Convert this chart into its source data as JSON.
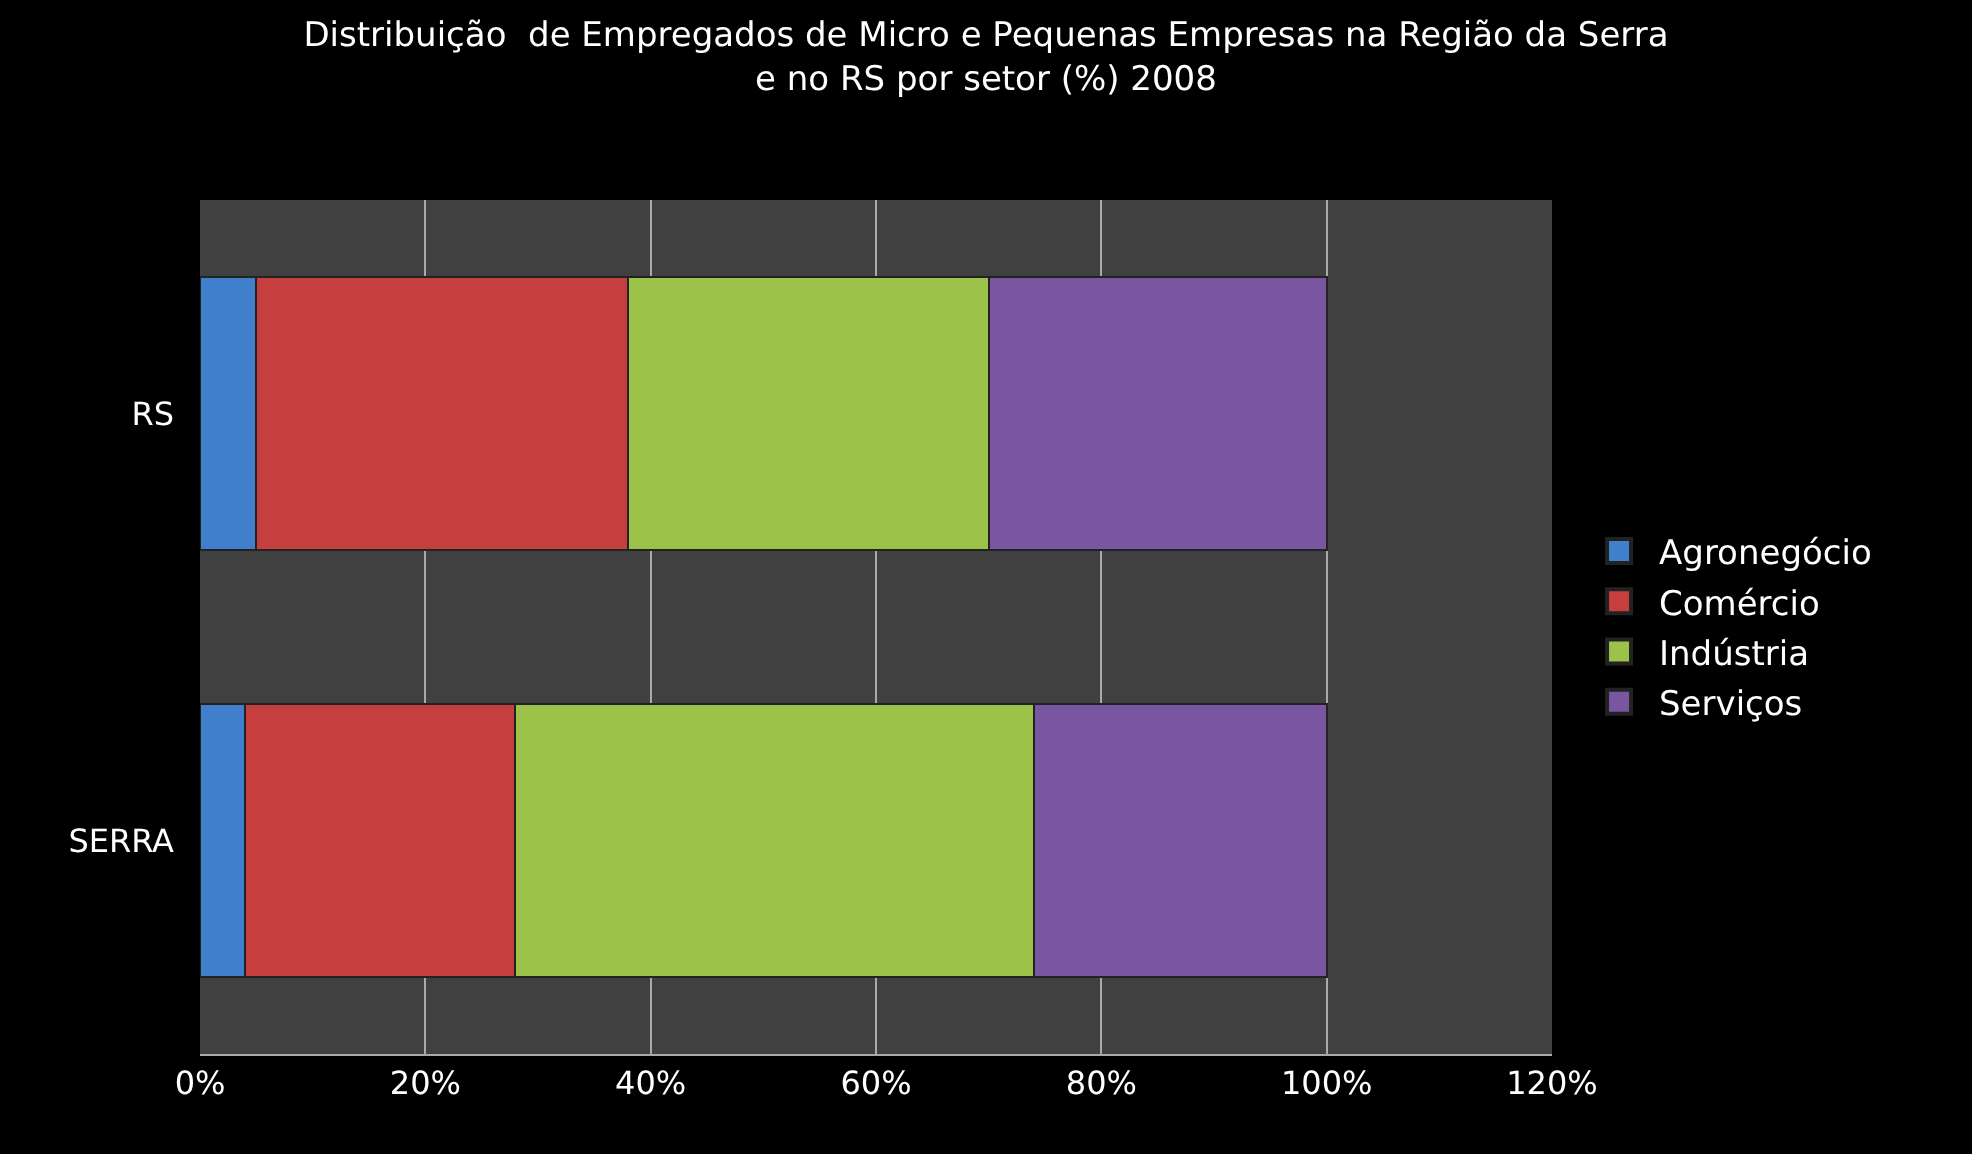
{
  "chart_data": {
    "type": "bar",
    "orientation": "horizontal",
    "stacked": true,
    "title": "Distribuição  de Empregados de Micro e Pequenas Empresas na Região da Serra\ne no RS por setor (%) 2008",
    "categories": [
      "RS",
      "SERRA"
    ],
    "series": [
      {
        "name": "Agronegócio",
        "color": "#3f7fcc",
        "values": [
          5,
          4
        ]
      },
      {
        "name": "Comércio",
        "color": "#c73e3e",
        "values": [
          33,
          24
        ]
      },
      {
        "name": "Indústria",
        "color": "#9cc24a",
        "values": [
          32,
          46
        ]
      },
      {
        "name": "Serviços",
        "color": "#7a55a0",
        "values": [
          30,
          26
        ]
      }
    ],
    "xlim": [
      0,
      120
    ],
    "xticks": [
      {
        "value": 0,
        "label": "0%"
      },
      {
        "value": 20,
        "label": "20%"
      },
      {
        "value": 40,
        "label": "40%"
      },
      {
        "value": 60,
        "label": "60%"
      },
      {
        "value": 80,
        "label": "80%"
      },
      {
        "value": 100,
        "label": "100%"
      },
      {
        "value": 120,
        "label": "120%"
      }
    ],
    "grid": "x",
    "legend": "right"
  }
}
